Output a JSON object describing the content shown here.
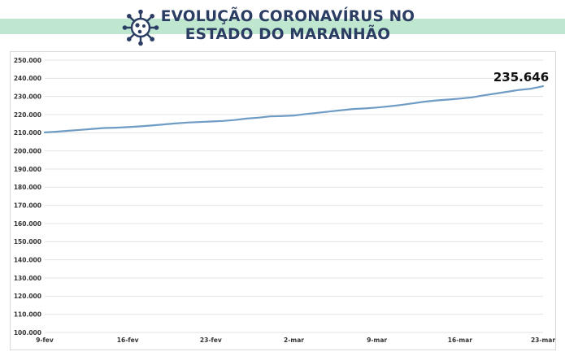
{
  "header": {
    "title_line1": "EVOLUÇÃO CORONAVÍRUS NO",
    "title_line2": "ESTADO DO MARANHÃO",
    "logo_icon": "virus-icon",
    "accent_color": "#2b3d63",
    "band_color": "#bfe6cf"
  },
  "chart_data": {
    "type": "line",
    "title": "",
    "xlabel": "",
    "ylabel": "",
    "ylim": [
      100000,
      250000
    ],
    "y_ticks": [
      "250.000",
      "240.000",
      "230.000",
      "220.000",
      "210.000",
      "200.000",
      "190.000",
      "180.000",
      "170.000",
      "160.000",
      "150.000",
      "140.000",
      "130.000",
      "120.000",
      "110.000",
      "100.000"
    ],
    "x_ticks": [
      "9-fev",
      "16-fev",
      "23-fev",
      "2-mar",
      "9-mar",
      "16-mar",
      "23-mar"
    ],
    "grid": true,
    "line_color": "#6f9cc4",
    "callout_label": "235.646",
    "series": [
      {
        "x": [
          "9-fev",
          "10-fev",
          "11-fev",
          "12-fev",
          "13-fev",
          "14-fev",
          "15-fev",
          "16-fev",
          "17-fev",
          "18-fev",
          "19-fev",
          "20-fev",
          "21-fev",
          "22-fev",
          "23-fev",
          "24-fev",
          "25-fev",
          "26-fev",
          "27-fev",
          "28-fev",
          "1-mar",
          "2-mar",
          "3-mar",
          "4-mar",
          "5-mar",
          "6-mar",
          "7-mar",
          "8-mar",
          "9-mar",
          "10-mar",
          "11-mar",
          "12-mar",
          "13-mar",
          "14-mar",
          "15-mar",
          "16-mar",
          "17-mar",
          "18-mar",
          "19-mar",
          "20-mar",
          "21-mar",
          "22-mar",
          "23-mar"
        ],
        "values": [
          210200,
          210600,
          211100,
          211600,
          212100,
          212600,
          212800,
          213100,
          213500,
          214000,
          214600,
          215100,
          215600,
          215900,
          216200,
          216500,
          217000,
          217800,
          218300,
          219000,
          219200,
          219500,
          220300,
          221000,
          221700,
          222400,
          223100,
          223400,
          223900,
          224500,
          225300,
          226200,
          227100,
          227800,
          228300,
          228800,
          229500,
          230600,
          231600,
          232600,
          233600,
          234300,
          235646
        ]
      }
    ]
  }
}
